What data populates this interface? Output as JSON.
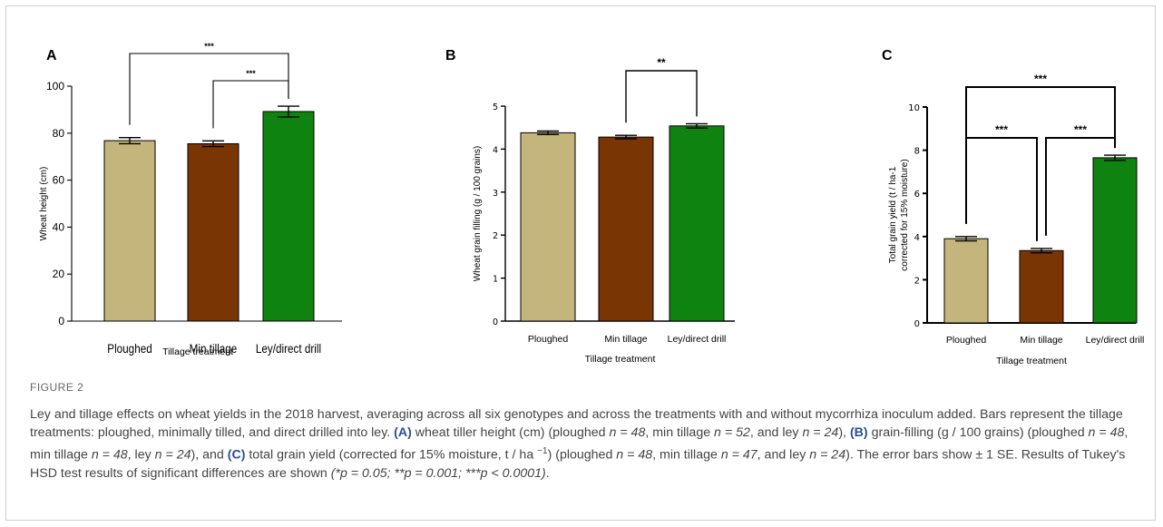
{
  "figure_label": "FIGURE 2",
  "caption": {
    "p1": "Ley and tillage effects on wheat yields in the 2018 harvest, averaging across all six genotypes and across the treatments with and without mycorrhiza inoculum added. Bars represent the tillage treatments: ploughed, minimally tilled, and direct drilled into ley.",
    "a_ref": "(A)",
    "a_text": " wheat tiller height (cm) (ploughed ",
    "a_n1": "n = 48",
    "a_mid1": ", min tillage ",
    "a_n2": "n = 52",
    "a_mid2": ", and ley ",
    "a_n3": "n = 24",
    "a_end": "),",
    "b_ref": "(B)",
    "b_text": " grain-filling (g / 100 grains) (ploughed ",
    "b_n1": "n = 48",
    "b_mid1": ", min tillage ",
    "b_n2": "n = 48",
    "b_mid2": ", ley ",
    "b_n3": "n = 24",
    "b_end": "), and",
    "c_ref": "(C)",
    "c_text": " total grain yield (corrected for 15% moisture, t / ha ",
    "c_sup": "−1",
    "c_text2": ") (ploughed ",
    "c_n1": "n = 48",
    "c_mid1": ", min tillage ",
    "c_n2": "n = 47",
    "c_mid2": ", and ley ",
    "c_n3": "n = 24",
    "c_end": "). The error bars show ± 1 SE. Results of Tukey's HSD test results of significant differences are shown ",
    "sig_note": "(*p = 0.05; **p = 0.001; ***p < 0.0001)",
    "final": "."
  },
  "colors": {
    "ploughed": "#c4b57c",
    "min_tillage": "#7a3504",
    "ley": "#0f830f"
  },
  "chart_data": [
    {
      "type": "bar",
      "panel": "A",
      "categories": [
        "Ploughed",
        "Min tillage",
        "Ley/direct drill"
      ],
      "values": [
        76.8,
        75.5,
        89.2
      ],
      "errors": [
        1.3,
        1.2,
        2.3
      ],
      "ylabel": "Wheat height (cm)",
      "xlabel": "Tillage treatment",
      "ylim": [
        0,
        100
      ],
      "yticks": [
        "0",
        "20",
        "40",
        "60",
        "80",
        "100"
      ],
      "significance": [
        {
          "from": 0,
          "to": 2,
          "label": "***"
        },
        {
          "from": 1,
          "to": 2,
          "label": "***"
        }
      ]
    },
    {
      "type": "bar",
      "panel": "B",
      "categories": [
        "Ploughed",
        "Min tillage",
        "Ley/direct drill"
      ],
      "values": [
        4.38,
        4.28,
        4.54
      ],
      "errors": [
        0.04,
        0.04,
        0.05
      ],
      "ylabel": "Wheat grain filling (g / 100 grains)",
      "xlabel": "Tillage treatment",
      "ylim": [
        0,
        5
      ],
      "yticks": [
        "0",
        "1",
        "2",
        "3",
        "4",
        "5"
      ],
      "significance": [
        {
          "from": 1,
          "to": 2,
          "label": "**"
        }
      ]
    },
    {
      "type": "bar",
      "panel": "C",
      "categories": [
        "Ploughed",
        "Min tillage",
        "Ley/direct drill"
      ],
      "values": [
        3.9,
        3.35,
        7.65
      ],
      "errors": [
        0.1,
        0.1,
        0.12
      ],
      "ylabel_lines": [
        "Total grain yield (t / ha-1",
        "corrected for 15% moisture)"
      ],
      "xlabel": "Tillage treatment",
      "ylim": [
        0,
        10
      ],
      "yticks": [
        "0",
        "2",
        "4",
        "6",
        "8",
        "10"
      ],
      "significance": [
        {
          "from": 0,
          "to": 2,
          "label": "***"
        },
        {
          "from": 0,
          "to": 1,
          "label": "***"
        },
        {
          "from": 1,
          "to": 2,
          "label": "***"
        }
      ]
    }
  ]
}
